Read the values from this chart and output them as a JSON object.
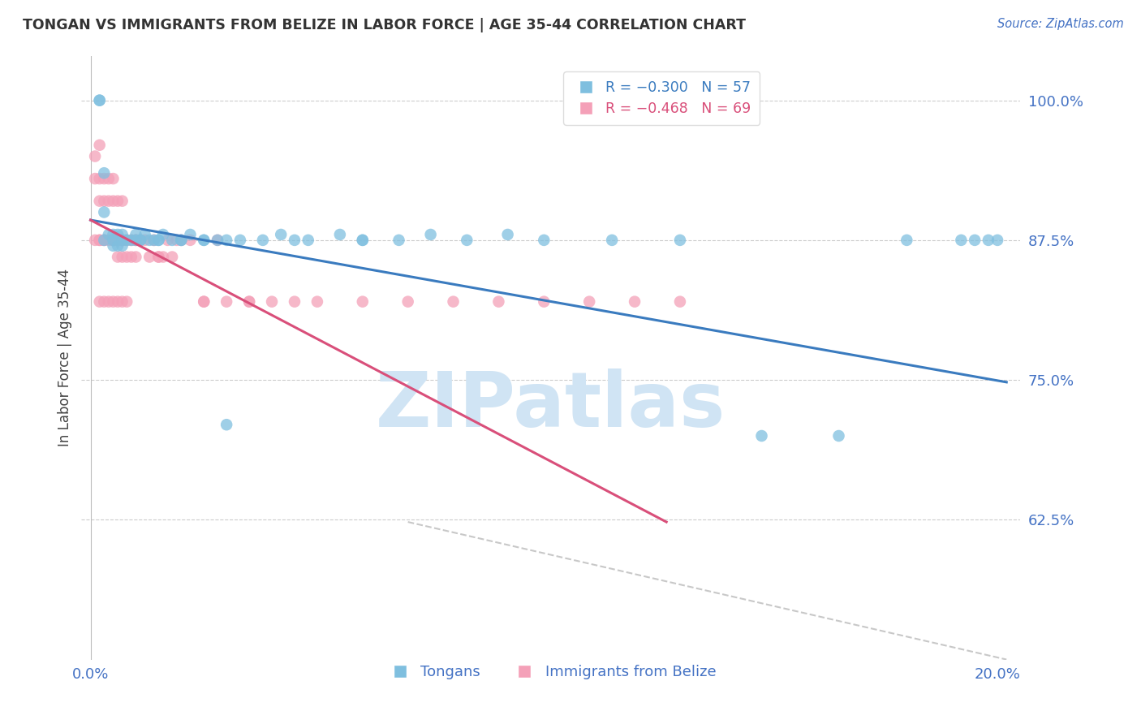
{
  "title": "TONGAN VS IMMIGRANTS FROM BELIZE IN LABOR FORCE | AGE 35-44 CORRELATION CHART",
  "source": "Source: ZipAtlas.com",
  "ylabel": "In Labor Force | Age 35-44",
  "xlabel_left_label": "0.0%",
  "xlabel_right_label": "20.0%",
  "ytick_labels": [
    "100.0%",
    "87.5%",
    "75.0%",
    "62.5%"
  ],
  "ytick_values": [
    1.0,
    0.875,
    0.75,
    0.625
  ],
  "ylim": [
    0.5,
    1.04
  ],
  "xlim": [
    -0.002,
    0.205
  ],
  "color_blue": "#7fbfdf",
  "color_pink": "#f4a0b8",
  "color_line_blue": "#3a7bbf",
  "color_line_pink": "#d94f7a",
  "color_line_dashed": "#c8c8c8",
  "watermark": "ZIPatlas",
  "legend_label1": "Tongans",
  "legend_label2": "Immigrants from Belize",
  "grid_color": "#cccccc",
  "title_color": "#333333",
  "axis_color": "#4472C4",
  "watermark_color": "#d0e4f4",
  "bg_color": "#ffffff",
  "blue_line_x": [
    0.0,
    0.202
  ],
  "blue_line_y": [
    0.893,
    0.748
  ],
  "pink_line_x": [
    0.0,
    0.127
  ],
  "pink_line_y": [
    0.893,
    0.623
  ],
  "dashed_line_x": [
    0.07,
    0.202
  ],
  "dashed_line_y": [
    0.623,
    0.5
  ],
  "blue_x": [
    0.002,
    0.002,
    0.003,
    0.003,
    0.004,
    0.005,
    0.005,
    0.006,
    0.006,
    0.007,
    0.007,
    0.008,
    0.009,
    0.01,
    0.011,
    0.011,
    0.012,
    0.013,
    0.014,
    0.015,
    0.016,
    0.018,
    0.02,
    0.022,
    0.025,
    0.028,
    0.03,
    0.033,
    0.038,
    0.042,
    0.048,
    0.055,
    0.06,
    0.068,
    0.075,
    0.083,
    0.092,
    0.1,
    0.115,
    0.13,
    0.148,
    0.165,
    0.18,
    0.192,
    0.195,
    0.198,
    0.2,
    0.003,
    0.005,
    0.007,
    0.01,
    0.015,
    0.02,
    0.025,
    0.03,
    0.045,
    0.06
  ],
  "blue_y": [
    1.0,
    1.0,
    0.935,
    0.9,
    0.88,
    0.88,
    0.87,
    0.88,
    0.87,
    0.88,
    0.87,
    0.875,
    0.875,
    0.88,
    0.875,
    0.875,
    0.88,
    0.875,
    0.875,
    0.875,
    0.88,
    0.875,
    0.875,
    0.88,
    0.875,
    0.875,
    0.875,
    0.875,
    0.875,
    0.88,
    0.875,
    0.88,
    0.875,
    0.875,
    0.88,
    0.875,
    0.88,
    0.875,
    0.875,
    0.875,
    0.7,
    0.7,
    0.875,
    0.875,
    0.875,
    0.875,
    0.875,
    0.875,
    0.875,
    0.875,
    0.875,
    0.875,
    0.875,
    0.875,
    0.71,
    0.875,
    0.875
  ],
  "pink_x": [
    0.001,
    0.001,
    0.001,
    0.002,
    0.002,
    0.002,
    0.002,
    0.003,
    0.003,
    0.003,
    0.004,
    0.004,
    0.004,
    0.005,
    0.005,
    0.005,
    0.006,
    0.006,
    0.006,
    0.007,
    0.007,
    0.007,
    0.008,
    0.008,
    0.009,
    0.009,
    0.01,
    0.01,
    0.011,
    0.012,
    0.013,
    0.014,
    0.015,
    0.016,
    0.017,
    0.018,
    0.019,
    0.02,
    0.022,
    0.025,
    0.028,
    0.03,
    0.035,
    0.04,
    0.045,
    0.05,
    0.06,
    0.07,
    0.08,
    0.09,
    0.1,
    0.11,
    0.12,
    0.13,
    0.002,
    0.003,
    0.005,
    0.007,
    0.01,
    0.015,
    0.025,
    0.035,
    0.002,
    0.003,
    0.004,
    0.005,
    0.006,
    0.007,
    0.008
  ],
  "pink_y": [
    0.95,
    0.93,
    0.875,
    0.96,
    0.93,
    0.91,
    0.875,
    0.93,
    0.91,
    0.875,
    0.93,
    0.91,
    0.875,
    0.93,
    0.91,
    0.875,
    0.91,
    0.875,
    0.86,
    0.91,
    0.875,
    0.86,
    0.875,
    0.86,
    0.875,
    0.86,
    0.875,
    0.86,
    0.875,
    0.875,
    0.86,
    0.875,
    0.86,
    0.86,
    0.875,
    0.86,
    0.875,
    0.875,
    0.875,
    0.82,
    0.875,
    0.82,
    0.82,
    0.82,
    0.82,
    0.82,
    0.82,
    0.82,
    0.82,
    0.82,
    0.82,
    0.82,
    0.82,
    0.82,
    0.875,
    0.875,
    0.875,
    0.875,
    0.875,
    0.86,
    0.82,
    0.82,
    0.82,
    0.82,
    0.82,
    0.82,
    0.82,
    0.82,
    0.82
  ]
}
